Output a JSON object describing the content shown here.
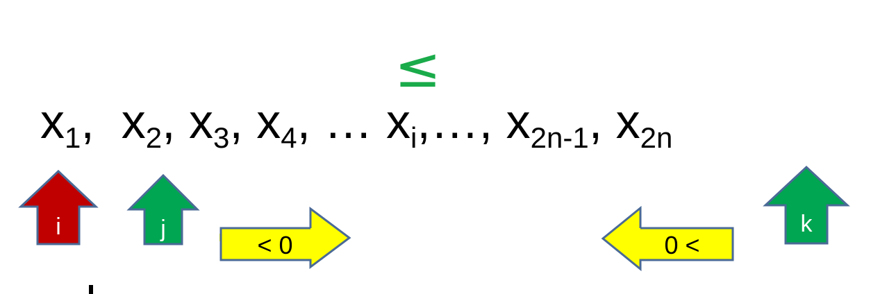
{
  "sequence": {
    "terms": [
      {
        "base": "x",
        "sub": "1",
        "sep": ",  "
      },
      {
        "base": "x",
        "sub": "2",
        "sep": ", "
      },
      {
        "base": "x",
        "sub": "3",
        "sep": ", "
      },
      {
        "base": "x",
        "sub": "4",
        "sep": ", … "
      },
      {
        "base": "x",
        "sub": "i",
        "sep": ",…, "
      },
      {
        "base": "x",
        "sub": "2n-1",
        "sep": ", "
      },
      {
        "base": "x",
        "sub": "2n",
        "sep": ""
      }
    ]
  },
  "relation_symbol": "≤",
  "pointers": {
    "i": {
      "label": "i",
      "color": "#c00000"
    },
    "j": {
      "label": "j",
      "color": "#00a651"
    },
    "k": {
      "label": "k",
      "color": "#00a651"
    }
  },
  "arrows": {
    "right": {
      "label": "< 0",
      "direction": "right",
      "color": "#ffff00"
    },
    "left": {
      "label": "0 <",
      "direction": "left",
      "color": "#ffff00"
    }
  },
  "colors": {
    "outline": "#4a6a96",
    "leq": "#1aab4a"
  }
}
